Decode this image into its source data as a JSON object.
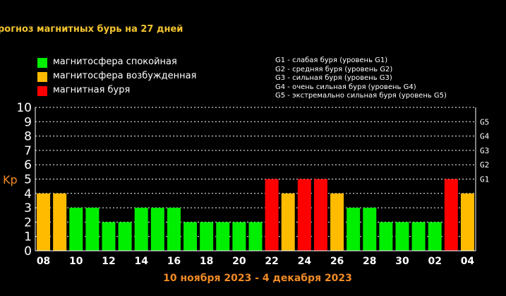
{
  "title": "рогноз магнитных бурь на 27 дней",
  "legend": [
    {
      "label": "магнитосфера спокойная",
      "color": "#00ee00"
    },
    {
      "label": "магнитосфера возбужденная",
      "color": "#ffbb00"
    },
    {
      "label": "магнитная буря",
      "color": "#ff0000"
    }
  ],
  "g_legend": [
    "G1 - слабая буря (уровень G1)",
    "G2 - средняя буря (уровень G2)",
    "G3 - сильная буря (уровень G3)",
    "G4 - очень сильная буря (уровень G4)",
    "G5 - экстремально сильная буря (уровень G5)"
  ],
  "date_range": "10 ноября 2023 - 4 декабря 2023",
  "chart_data": {
    "type": "bar",
    "ylabel": "Kp",
    "ylim": [
      0,
      10
    ],
    "y_ticks": [
      "0",
      "1",
      "2",
      "3",
      "4",
      "5",
      "6",
      "7",
      "8",
      "9",
      "10"
    ],
    "g_levels": [
      {
        "label": "G1",
        "kp": 5
      },
      {
        "label": "G2",
        "kp": 6
      },
      {
        "label": "G3",
        "kp": 7
      },
      {
        "label": "G4",
        "kp": 8
      },
      {
        "label": "G5",
        "kp": 9
      }
    ],
    "x_tick_labels": [
      "08",
      "10",
      "12",
      "14",
      "16",
      "18",
      "20",
      "22",
      "24",
      "26",
      "28",
      "30",
      "02",
      "04"
    ],
    "values": [
      4,
      4,
      3,
      3,
      2,
      2,
      3,
      3,
      3,
      2,
      2,
      2,
      2,
      2,
      5,
      4,
      5,
      5,
      4,
      3,
      3,
      2,
      2,
      2,
      2,
      5,
      4
    ],
    "colors": {
      "quiet": "#00ee00",
      "active": "#ffbb00",
      "storm": "#ff0000"
    },
    "grid": true
  }
}
